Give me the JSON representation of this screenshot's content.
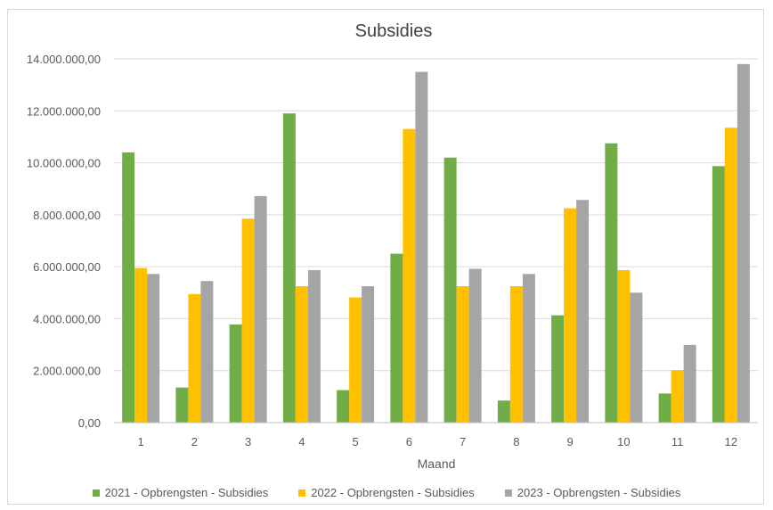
{
  "chart_data": {
    "type": "bar",
    "title": "Subsidies",
    "xlabel": "Maand",
    "ylabel": "",
    "categories": [
      "1",
      "2",
      "3",
      "4",
      "5",
      "6",
      "7",
      "8",
      "9",
      "10",
      "11",
      "12"
    ],
    "ylim": [
      0,
      14000000
    ],
    "yticks": [
      0,
      2000000,
      4000000,
      6000000,
      8000000,
      10000000,
      12000000,
      14000000
    ],
    "ytick_labels": [
      "0,00",
      "2.000.000,00",
      "4.000.000,00",
      "6.000.000,00",
      "8.000.000,00",
      "10.000.000,00",
      "12.000.000,00",
      "14.000.000,00"
    ],
    "grid": true,
    "legend_position": "bottom",
    "series": [
      {
        "name": "2021 - Opbrengsten - Subsidies",
        "color": "#70ad47",
        "values": [
          10400000,
          1350000,
          3780000,
          11900000,
          1250000,
          6500000,
          10200000,
          850000,
          4130000,
          10750000,
          1120000,
          9870000
        ]
      },
      {
        "name": "2022 - Opbrengsten - Subsidies",
        "color": "#ffc000",
        "values": [
          5950000,
          4950000,
          7850000,
          5250000,
          4820000,
          11300000,
          5250000,
          5250000,
          8250000,
          5870000,
          2020000,
          11350000
        ]
      },
      {
        "name": "2023 - Opbrengsten - Subsidies",
        "color": "#a5a5a5",
        "values": [
          5720000,
          5450000,
          8720000,
          5870000,
          5250000,
          13500000,
          5920000,
          5720000,
          8570000,
          5000000,
          2990000,
          13800000
        ]
      }
    ]
  }
}
